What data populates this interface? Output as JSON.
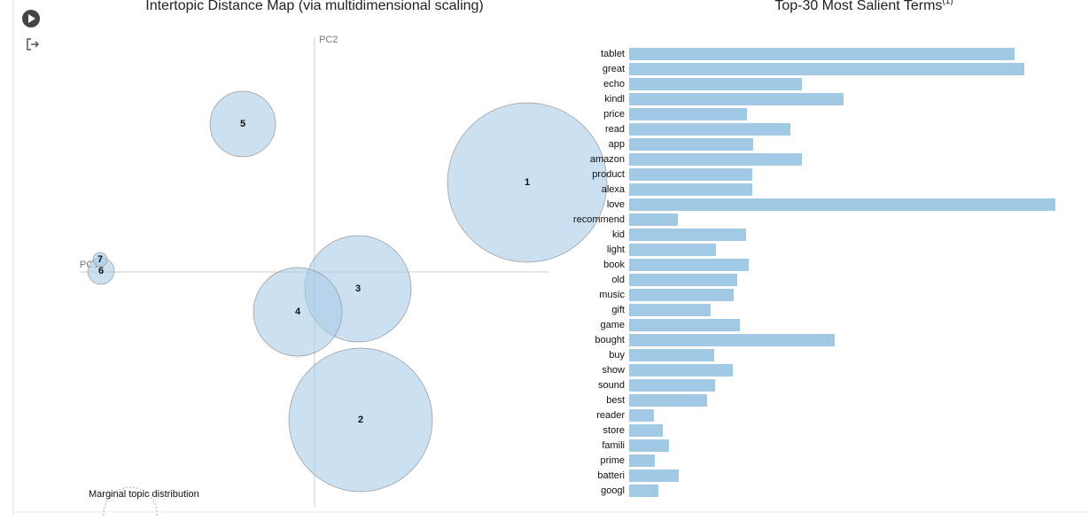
{
  "chart_data": [
    {
      "type": "bubble",
      "title": "Intertopic Distance Map (via multidimensional scaling)",
      "x_label": "PC1",
      "y_label": "PC2",
      "subtitle": "Marginal topic distribution",
      "labels": [
        "1",
        "2",
        "3",
        "4",
        "5",
        "6",
        "7"
      ],
      "x": [
        240,
        52,
        49,
        -19,
        -81,
        -241,
        -242
      ],
      "values": [
        101,
        -167,
        -19,
        -45,
        167,
        1,
        14
      ],
      "sizes": [
        90,
        81,
        60,
        50,
        37,
        15,
        8
      ],
      "xlim": [
        -265,
        265
      ],
      "ylim": [
        -265,
        265
      ],
      "color": "#a8cbe6"
    },
    {
      "type": "hbar",
      "title": "Top-30 Most Salient Terms",
      "title_note": "(1)",
      "categories": [
        "tablet",
        "great",
        "echo",
        "kindl",
        "price",
        "read",
        "app",
        "amazon",
        "product",
        "alexa",
        "love",
        "recommend",
        "kid",
        "light",
        "book",
        "old",
        "music",
        "gift",
        "game",
        "bought",
        "buy",
        "show",
        "sound",
        "best",
        "reader",
        "store",
        "famili",
        "prime",
        "batteri",
        "googl"
      ],
      "values": [
        435,
        446,
        195,
        242,
        133,
        182,
        140,
        195,
        139,
        139,
        481,
        55,
        132,
        98,
        135,
        122,
        118,
        92,
        125,
        232,
        96,
        117,
        97,
        88,
        28,
        38,
        45,
        29,
        56,
        33
      ],
      "xlim": [
        0,
        500
      ],
      "color": "#a1c9e4"
    }
  ]
}
